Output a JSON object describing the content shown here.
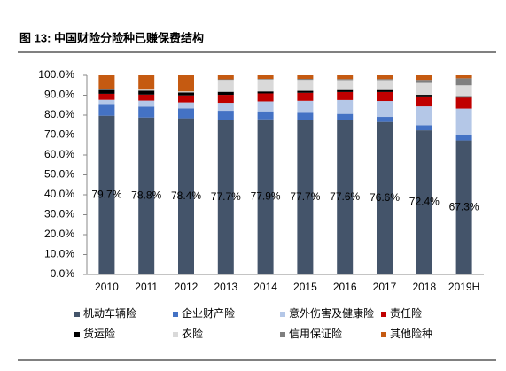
{
  "chart_data": {
    "type": "stacked_bar",
    "title": "图 13: 中国财险分险种已赚保费结构",
    "categories": [
      "2010",
      "2011",
      "2012",
      "2013",
      "2014",
      "2015",
      "2016",
      "2017",
      "2018",
      "2019H"
    ],
    "ylim": [
      0,
      100
    ],
    "yticks": [
      {
        "value": 0,
        "label": "0.0%"
      },
      {
        "value": 10,
        "label": "10.0%"
      },
      {
        "value": 20,
        "label": "20.0%"
      },
      {
        "value": 30,
        "label": "30.0%"
      },
      {
        "value": 40,
        "label": "40.0%"
      },
      {
        "value": 50,
        "label": "50.0%"
      },
      {
        "value": 60,
        "label": "60.0%"
      },
      {
        "value": 70,
        "label": "70.0%"
      },
      {
        "value": 80,
        "label": "80.0%"
      },
      {
        "value": 90,
        "label": "90.0%"
      },
      {
        "value": 100,
        "label": "100.0%"
      }
    ],
    "series": [
      {
        "name": "机动车辆险",
        "color": "#44546a",
        "values": [
          79.7,
          78.8,
          78.4,
          77.7,
          77.9,
          77.7,
          77.6,
          76.6,
          72.4,
          67.3
        ],
        "value_labels": [
          "79.7%",
          "78.8%",
          "78.4%",
          "77.7%",
          "77.9%",
          "77.7%",
          "77.6%",
          "76.6%",
          "72.4%",
          "67.3%"
        ]
      },
      {
        "name": "企业财产险",
        "color": "#4472c4",
        "values": [
          5.5,
          5.5,
          5,
          4.5,
          4,
          3.5,
          3,
          2.5,
          2.5,
          2.5
        ]
      },
      {
        "name": "意外伤害及健康险",
        "color": "#b4c7e7",
        "values": [
          2.5,
          3,
          3,
          4,
          5,
          6,
          7,
          8,
          9.5,
          13.5
        ]
      },
      {
        "name": "责任险",
        "color": "#c00000",
        "values": [
          3,
          3,
          3.5,
          4,
          4,
          4,
          4,
          4.5,
          5,
          5.5
        ]
      },
      {
        "name": "货运险",
        "color": "#000000",
        "values": [
          2,
          2,
          1.5,
          1.5,
          1,
          1,
          1,
          1,
          0.8,
          0.7
        ]
      },
      {
        "name": "农险",
        "color": "#d9d9d9",
        "values": [
          0.3,
          0.5,
          0.5,
          6,
          6,
          5.5,
          5,
          5,
          6,
          5.5
        ]
      },
      {
        "name": "信用保证险",
        "color": "#7f7f7f",
        "values": [
          0,
          0,
          0,
          0.3,
          0.3,
          0.5,
          0.5,
          0.5,
          1.5,
          3.5
        ]
      },
      {
        "name": "其他险种",
        "color": "#c55a11",
        "values": [
          7,
          7.2,
          8.1,
          2,
          1.8,
          1.8,
          1.9,
          1.9,
          2.3,
          1.5
        ]
      }
    ]
  }
}
